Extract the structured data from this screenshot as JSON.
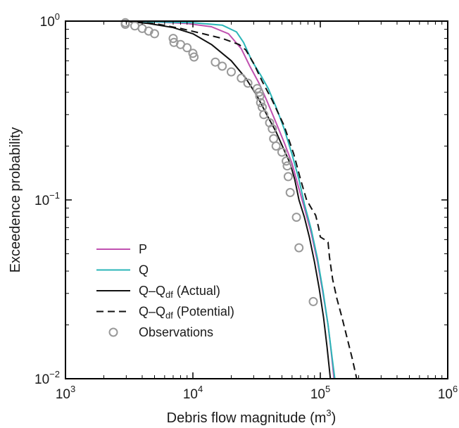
{
  "chart_data": {
    "type": "line",
    "xlabel": "Debris flow magnitude (m",
    "xlabel_sup": "3",
    "xlabel_end": ")",
    "ylabel": "Exceedence probability",
    "xscale": "log",
    "yscale": "log",
    "xlim": [
      1000,
      1000000
    ],
    "ylim": [
      0.01,
      1
    ],
    "x_ticks": [
      {
        "value": 1000,
        "base": "10",
        "exp": "3"
      },
      {
        "value": 10000,
        "base": "10",
        "exp": "4"
      },
      {
        "value": 100000,
        "base": "10",
        "exp": "5"
      },
      {
        "value": 1000000,
        "base": "10",
        "exp": "6"
      }
    ],
    "y_ticks": [
      {
        "value": 0.01,
        "base": "10",
        "exp": "−2"
      },
      {
        "value": 0.1,
        "base": "10",
        "exp": "−1"
      },
      {
        "value": 1,
        "base": "10",
        "exp": "0"
      }
    ],
    "legend_position": "bottom-left",
    "series": [
      {
        "name": "P",
        "name_sub": "",
        "name_suffix": "",
        "color": "#c051b0",
        "style": "solid",
        "points": [
          [
            2900,
            1.0
          ],
          [
            5000,
            0.99
          ],
          [
            9000,
            0.97
          ],
          [
            14000,
            0.93
          ],
          [
            19000,
            0.85
          ],
          [
            24000,
            0.7
          ],
          [
            28000,
            0.56
          ],
          [
            33000,
            0.45
          ],
          [
            38000,
            0.36
          ],
          [
            44000,
            0.28
          ],
          [
            52000,
            0.21
          ],
          [
            60000,
            0.16
          ],
          [
            67000,
            0.12
          ],
          [
            75000,
            0.09
          ],
          [
            85000,
            0.065
          ],
          [
            95000,
            0.045
          ],
          [
            105000,
            0.03
          ],
          [
            115000,
            0.02
          ],
          [
            122000,
            0.014
          ],
          [
            128000,
            0.01
          ]
        ]
      },
      {
        "name": "Q",
        "name_sub": "",
        "name_suffix": "",
        "color": "#2bb6b8",
        "style": "solid",
        "points": [
          [
            2900,
            1.0
          ],
          [
            5000,
            0.99
          ],
          [
            10000,
            0.98
          ],
          [
            17000,
            0.95
          ],
          [
            22000,
            0.87
          ],
          [
            25000,
            0.76
          ],
          [
            29000,
            0.6
          ],
          [
            34000,
            0.5
          ],
          [
            39000,
            0.42
          ],
          [
            45000,
            0.33
          ],
          [
            52000,
            0.25
          ],
          [
            60000,
            0.18
          ],
          [
            68000,
            0.13
          ],
          [
            75000,
            0.095
          ],
          [
            85000,
            0.068
          ],
          [
            95000,
            0.047
          ],
          [
            105000,
            0.031
          ],
          [
            115000,
            0.02
          ],
          [
            124000,
            0.013
          ],
          [
            130000,
            0.01
          ]
        ]
      },
      {
        "name": "Q–Q",
        "name_sub": "df",
        "name_suffix": " (Actual)",
        "color": "#111111",
        "style": "solid",
        "points": [
          [
            2900,
            1.0
          ],
          [
            4500,
            0.97
          ],
          [
            7000,
            0.92
          ],
          [
            10000,
            0.85
          ],
          [
            14000,
            0.74
          ],
          [
            20000,
            0.6
          ],
          [
            26000,
            0.48
          ],
          [
            32000,
            0.38
          ],
          [
            38000,
            0.3
          ],
          [
            45000,
            0.24
          ],
          [
            52000,
            0.19
          ],
          [
            58000,
            0.16
          ],
          [
            63000,
            0.13
          ],
          [
            68000,
            0.1
          ],
          [
            75000,
            0.08
          ],
          [
            82000,
            0.062
          ],
          [
            90000,
            0.045
          ],
          [
            98000,
            0.032
          ],
          [
            106000,
            0.022
          ],
          [
            113000,
            0.015
          ],
          [
            120000,
            0.01
          ]
        ]
      },
      {
        "name": "Q–Q",
        "name_sub": "df",
        "name_suffix": " (Potential)",
        "color": "#111111",
        "style": "dashed",
        "points": [
          [
            2900,
            1.0
          ],
          [
            5000,
            0.97
          ],
          [
            8000,
            0.91
          ],
          [
            12000,
            0.85
          ],
          [
            17000,
            0.8
          ],
          [
            23000,
            0.74
          ],
          [
            26000,
            0.69
          ],
          [
            30000,
            0.58
          ],
          [
            35000,
            0.46
          ],
          [
            42000,
            0.36
          ],
          [
            52000,
            0.26
          ],
          [
            62000,
            0.18
          ],
          [
            70000,
            0.13
          ],
          [
            78000,
            0.1
          ],
          [
            85000,
            0.09
          ],
          [
            92000,
            0.082
          ],
          [
            97000,
            0.07
          ],
          [
            100000,
            0.062
          ],
          [
            108000,
            0.06
          ],
          [
            115000,
            0.058
          ],
          [
            118000,
            0.048
          ],
          [
            125000,
            0.036
          ],
          [
            135000,
            0.028
          ],
          [
            148000,
            0.022
          ],
          [
            162000,
            0.017
          ],
          [
            178000,
            0.013
          ],
          [
            193000,
            0.01
          ]
        ]
      }
    ],
    "observations": {
      "name": "Observations",
      "name_sub": "",
      "name_suffix": "",
      "color": "#999999",
      "marker": "circle",
      "points": [
        [
          2950,
          0.98
        ],
        [
          2950,
          0.96
        ],
        [
          3500,
          0.94
        ],
        [
          4000,
          0.91
        ],
        [
          4500,
          0.88
        ],
        [
          5000,
          0.85
        ],
        [
          7000,
          0.8
        ],
        [
          7100,
          0.76
        ],
        [
          8000,
          0.74
        ],
        [
          9000,
          0.71
        ],
        [
          10000,
          0.66
        ],
        [
          10200,
          0.63
        ],
        [
          15000,
          0.59
        ],
        [
          17000,
          0.56
        ],
        [
          20000,
          0.52
        ],
        [
          24000,
          0.48
        ],
        [
          27000,
          0.45
        ],
        [
          32000,
          0.42
        ],
        [
          33000,
          0.4
        ],
        [
          33500,
          0.38
        ],
        [
          34000,
          0.35
        ],
        [
          35000,
          0.33
        ],
        [
          36000,
          0.3
        ],
        [
          40000,
          0.27
        ],
        [
          42000,
          0.25
        ],
        [
          43000,
          0.22
        ],
        [
          45000,
          0.2
        ],
        [
          50000,
          0.185
        ],
        [
          54000,
          0.165
        ],
        [
          55000,
          0.155
        ],
        [
          56000,
          0.135
        ],
        [
          58000,
          0.11
        ],
        [
          65000,
          0.08
        ],
        [
          68000,
          0.054
        ],
        [
          88000,
          0.027
        ]
      ]
    }
  }
}
